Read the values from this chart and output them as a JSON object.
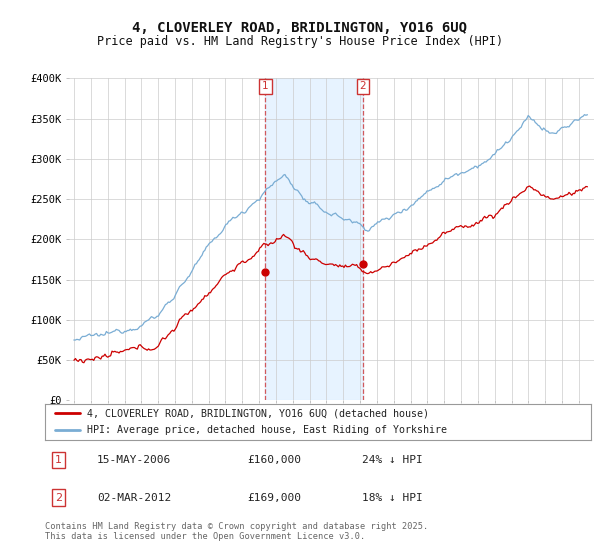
{
  "title": "4, CLOVERLEY ROAD, BRIDLINGTON, YO16 6UQ",
  "subtitle": "Price paid vs. HM Land Registry's House Price Index (HPI)",
  "ylim": [
    0,
    400000
  ],
  "yticks": [
    0,
    50000,
    100000,
    150000,
    200000,
    250000,
    300000,
    350000,
    400000
  ],
  "ytick_labels": [
    "£0",
    "£50K",
    "£100K",
    "£150K",
    "£200K",
    "£250K",
    "£300K",
    "£350K",
    "£400K"
  ],
  "sale1_date": "15-MAY-2006",
  "sale1_price": 160000,
  "sale1_hpi_diff": "24% ↓ HPI",
  "sale2_date": "02-MAR-2012",
  "sale2_price": 169000,
  "sale2_hpi_diff": "18% ↓ HPI",
  "legend_line1": "4, CLOVERLEY ROAD, BRIDLINGTON, YO16 6UQ (detached house)",
  "legend_line2": "HPI: Average price, detached house, East Riding of Yorkshire",
  "footer": "Contains HM Land Registry data © Crown copyright and database right 2025.\nThis data is licensed under the Open Government Licence v3.0.",
  "line_color_red": "#cc0000",
  "line_color_blue": "#7aadd4",
  "shade_color": "#ddeeff",
  "vline_color": "#cc3333",
  "sale1_x": 2006.37,
  "sale2_x": 2012.17,
  "xmin": 1994.7,
  "xmax": 2025.9,
  "title_fontsize": 10,
  "subtitle_fontsize": 8.5,
  "axis_fontsize": 7.5,
  "background_color": "#ffffff"
}
